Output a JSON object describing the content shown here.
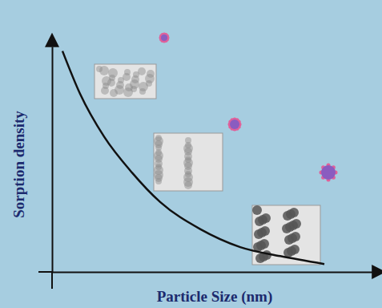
{
  "chart_data": {
    "type": "line",
    "x_label": "Particle Size (nm)",
    "y_label": "Sorption density",
    "x": [
      3.25,
      8.75,
      16.25,
      25,
      33.75,
      46.25,
      58.75,
      71.25,
      85
    ],
    "values": [
      98,
      79,
      60,
      44,
      31,
      19,
      11,
      7,
      3.5
    ],
    "color": "#111111",
    "xlim": [
      0,
      100
    ],
    "ylim": [
      0,
      100
    ],
    "grid": false,
    "tick_labels": false
  }
}
